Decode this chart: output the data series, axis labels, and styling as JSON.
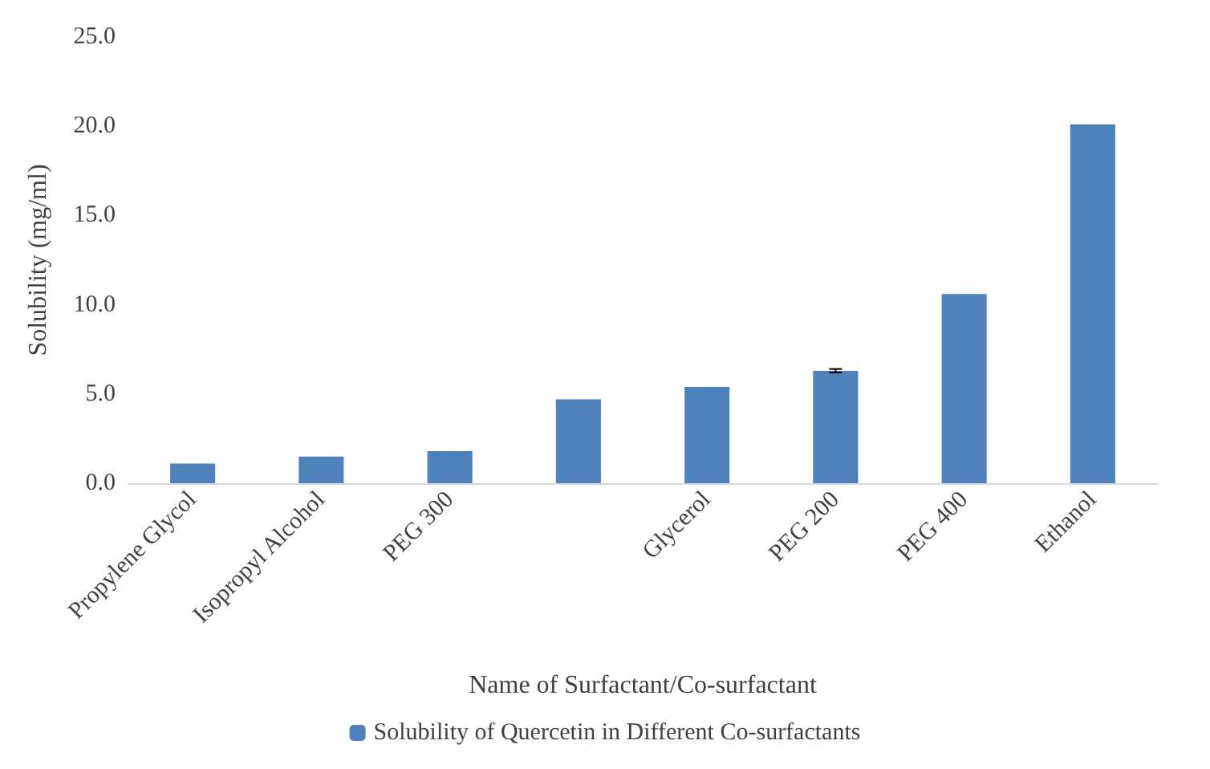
{
  "chart_data": {
    "type": "bar",
    "xlabel": "Name of Surfactant/Co-surfactant",
    "ylabel": "Solubility (mg/ml)",
    "categories": [
      "Propylene Glycol",
      "Isopropyl Alcohol",
      "PEG 300",
      null,
      "Glycerol",
      "PEG 200",
      "PEG 400",
      "Ethanol"
    ],
    "series": [
      {
        "name": "Solubility of Quercetin in Different Co-surfactants",
        "color": "#4f81bd",
        "values": [
          1.1,
          1.5,
          1.8,
          4.7,
          5.4,
          6.3,
          10.6,
          20.1
        ],
        "errors": [
          null,
          null,
          null,
          null,
          null,
          0.1,
          null,
          null
        ]
      }
    ],
    "ylim": [
      0,
      25
    ],
    "yticks": [
      {
        "value": 0,
        "label": "0.0"
      },
      {
        "value": 5,
        "label": "5.0"
      },
      {
        "value": 10,
        "label": "10.0"
      },
      {
        "value": 15,
        "label": "15.0"
      },
      {
        "value": 20,
        "label": "20.0"
      },
      {
        "value": 25,
        "label": "25.0"
      }
    ],
    "grid": false,
    "legend": "bottom"
  }
}
